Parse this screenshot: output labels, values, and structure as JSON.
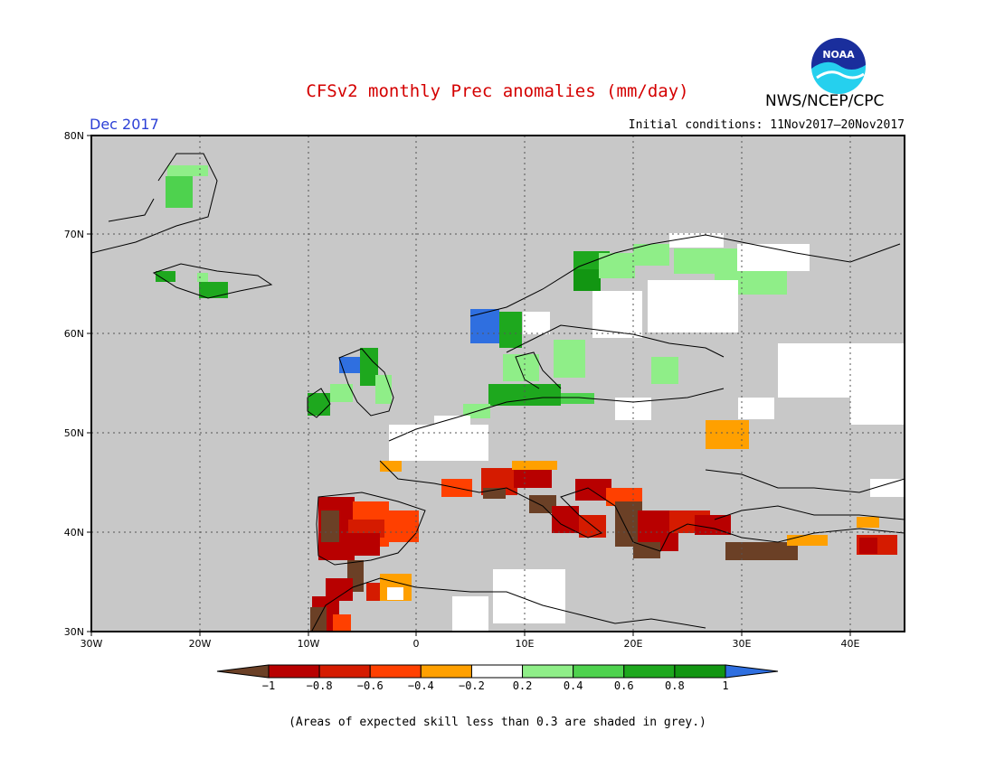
{
  "header": {
    "title": "CFSv2 monthly Prec anomalies (mm/day)",
    "organization": "NWS/NCEP/CPC",
    "logo_text": "NOAA",
    "valid_month": "Dec 2017",
    "initial_conditions": "Initial conditions: 11Nov2017–20Nov2017"
  },
  "map": {
    "region": "Europe",
    "background_color": "#c8c8c8",
    "lat_ticks": [
      "30N",
      "40N",
      "50N",
      "60N",
      "70N",
      "80N"
    ],
    "lon_ticks": [
      "30W",
      "20W",
      "10W",
      "0",
      "10E",
      "20E",
      "30E",
      "40E"
    ]
  },
  "colorbar": {
    "tick_labels": [
      "−1",
      "−0.8",
      "−0.6",
      "−0.4",
      "−0.2",
      "0.2",
      "0.4",
      "0.6",
      "0.8",
      "1"
    ],
    "colors": [
      "#6b4026",
      "#b80000",
      "#d51b00",
      "#ff4000",
      "#ffa000",
      "#ffffff",
      "#8fee88",
      "#4ed24e",
      "#1ea81e",
      "#129612",
      "#2f6fe0"
    ]
  },
  "caption": "(Areas of expected skill less than 0.3 are shaded in grey.)"
}
